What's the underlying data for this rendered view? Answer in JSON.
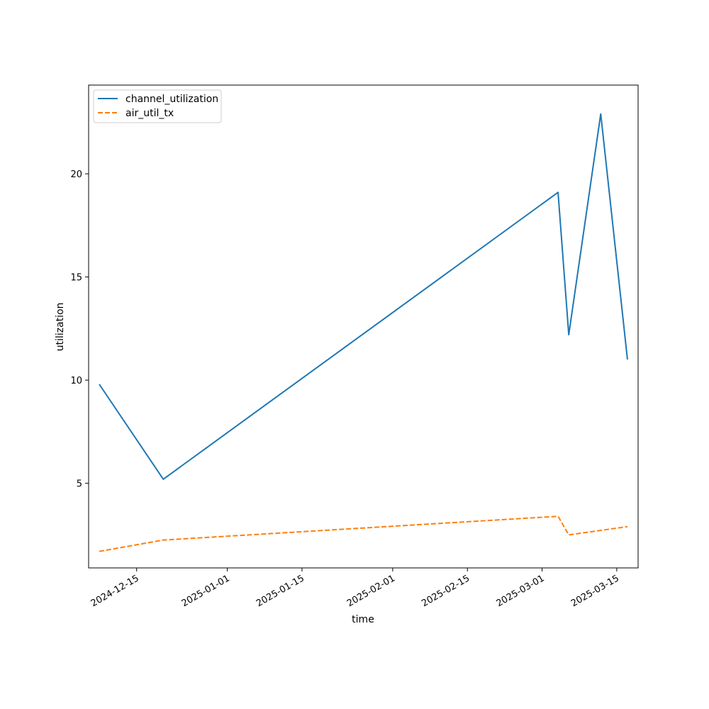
{
  "chart_data": {
    "type": "line",
    "xlabel": "time",
    "ylabel": "utilization",
    "x_ticks": [
      "2024-12-15",
      "2025-01-01",
      "2025-01-15",
      "2025-02-01",
      "2025-02-15",
      "2025-03-01",
      "2025-03-15"
    ],
    "y_ticks": [
      5,
      10,
      15,
      20
    ],
    "xlim": [
      "2024-12-06",
      "2025-03-19"
    ],
    "ylim": [
      0.9,
      24.3
    ],
    "grid": false,
    "legend": "top-left",
    "series": [
      {
        "name": "channel_utilization",
        "color": "#1f77b4",
        "style": "solid",
        "points": [
          {
            "x": "2024-12-08",
            "y": 9.8
          },
          {
            "x": "2024-12-20",
            "y": 5.2
          },
          {
            "x": "2025-03-04",
            "y": 19.1
          },
          {
            "x": "2025-03-06",
            "y": 12.2
          },
          {
            "x": "2025-03-12",
            "y": 22.9
          },
          {
            "x": "2025-03-17",
            "y": 11.0
          }
        ]
      },
      {
        "name": "air_util_tx",
        "color": "#ff7f0e",
        "style": "dashed",
        "points": [
          {
            "x": "2024-12-08",
            "y": 1.7
          },
          {
            "x": "2024-12-20",
            "y": 2.25
          },
          {
            "x": "2025-03-04",
            "y": 3.4
          },
          {
            "x": "2025-03-06",
            "y": 2.5
          },
          {
            "x": "2025-03-17",
            "y": 2.9
          }
        ]
      }
    ]
  }
}
